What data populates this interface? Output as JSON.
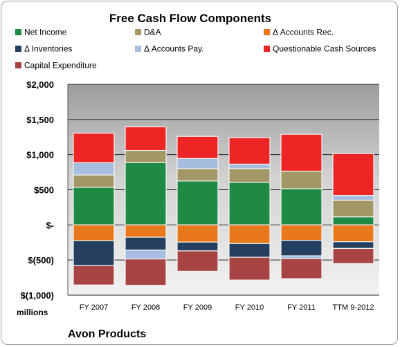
{
  "chart_data": {
    "type": "bar",
    "stacked": true,
    "title": "Free Cash Flow Components",
    "unit_label": "millions",
    "company": "Avon Products",
    "categories": [
      "FY 2007",
      "FY 2008",
      "FY 2009",
      "FY 2010",
      "FY 2011",
      "TTM 9-2012"
    ],
    "ylim": [
      -1000,
      2000
    ],
    "yticks": [
      {
        "value": 2000,
        "label": "$2,000"
      },
      {
        "value": 1500,
        "label": "$1,500"
      },
      {
        "value": 1000,
        "label": "$1,000"
      },
      {
        "value": 500,
        "label": "$500"
      },
      {
        "value": 0,
        "label": "$-"
      },
      {
        "value": -500,
        "label": "$(500)"
      },
      {
        "value": -1000,
        "label": "$(1,000)"
      }
    ],
    "grid": true,
    "legend_position": "top",
    "series": [
      {
        "name": "Net Income",
        "color": "#1e8a44",
        "values": [
          535,
          885,
          625,
          605,
          515,
          115
        ]
      },
      {
        "name": "D&A",
        "color": "#a39766",
        "values": [
          175,
          175,
          175,
          195,
          250,
          235
        ]
      },
      {
        "name": "Δ Accounts Rec.",
        "color": "#e8781b",
        "values": [
          -225,
          -175,
          -245,
          -265,
          -220,
          -240
        ]
      },
      {
        "name": "Δ Inventories",
        "color": "#243f60",
        "values": [
          -355,
          -185,
          -125,
          -195,
          -220,
          -95
        ]
      },
      {
        "name": "Δ Accounts Pay.",
        "color": "#a7bde0",
        "values": [
          175,
          -125,
          145,
          65,
          -40,
          70
        ]
      },
      {
        "name": "Questionable Cash Sources",
        "color": "#ee2525",
        "values": [
          420,
          335,
          315,
          375,
          525,
          595
        ]
      },
      {
        "name": "Capital Expenditure",
        "color": "#a84444",
        "values": [
          -275,
          -375,
          -290,
          -325,
          -285,
          -215
        ]
      }
    ]
  }
}
